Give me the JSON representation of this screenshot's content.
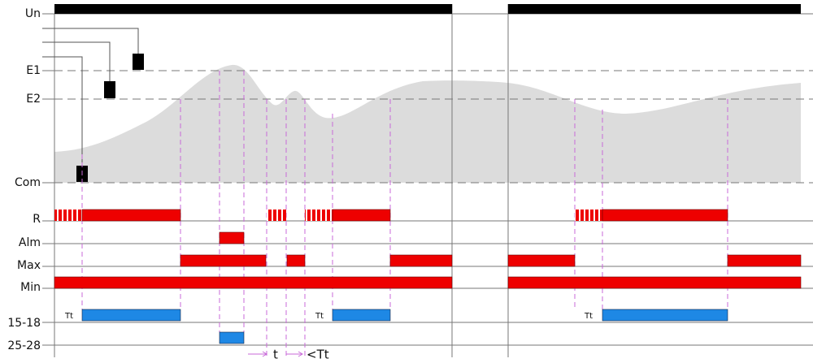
{
  "rows": [
    "Un",
    "E1",
    "E2",
    "Com",
    "R",
    "Alm",
    "Max",
    "Min",
    "15-18",
    "25-28"
  ],
  "delay_labels": [
    "Tt",
    "Tt",
    "Tt"
  ],
  "timing_labels": [
    "t",
    "<Tt"
  ]
}
